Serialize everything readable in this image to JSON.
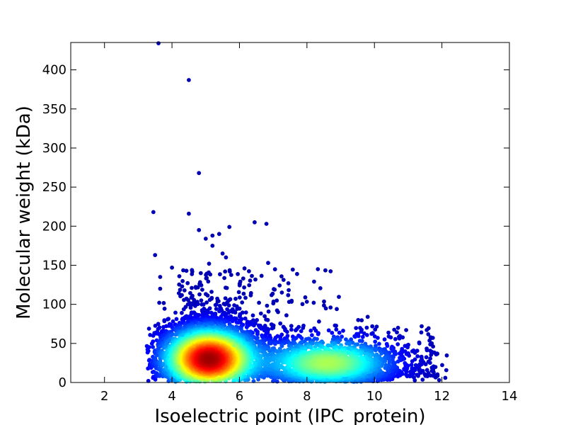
{
  "chart_data": {
    "type": "scatter",
    "title": "",
    "xlabel": "Isoelectric point (IPC_protein)",
    "ylabel": "Molecular weight (kDa)",
    "xlim": [
      1,
      14
    ],
    "ylim": [
      0,
      435
    ],
    "x_ticks": [
      2,
      4,
      6,
      8,
      10,
      12,
      14
    ],
    "y_ticks": [
      0,
      50,
      100,
      150,
      200,
      250,
      300,
      350,
      400
    ],
    "x_tick_labels": [
      "2",
      "4",
      "6",
      "8",
      "10",
      "12",
      "14"
    ],
    "y_tick_labels": [
      "0",
      "50",
      "100",
      "150",
      "200",
      "250",
      "300",
      "350",
      "400"
    ],
    "grid": false,
    "legend": "none",
    "colormap": "jet (point density)",
    "colormap_stops": [
      "#00007f",
      "#0000ff",
      "#007fff",
      "#00ffff",
      "#7fff7f",
      "#ffff00",
      "#ff7f00",
      "#ff0000",
      "#7f0000"
    ],
    "density_clusters": [
      {
        "center_x": 5.1,
        "center_y": 30,
        "description": "dense acidic cluster (peak density)"
      },
      {
        "center_x": 8.6,
        "center_y": 25,
        "description": "secondary basic cluster"
      }
    ],
    "outliers": [
      {
        "x": 3.6,
        "y": 434
      },
      {
        "x": 4.5,
        "y": 387
      },
      {
        "x": 4.8,
        "y": 268
      },
      {
        "x": 3.45,
        "y": 218
      },
      {
        "x": 4.5,
        "y": 216
      },
      {
        "x": 6.45,
        "y": 205
      },
      {
        "x": 6.8,
        "y": 203
      },
      {
        "x": 5.7,
        "y": 199
      },
      {
        "x": 4.8,
        "y": 195
      },
      {
        "x": 5.4,
        "y": 190
      },
      {
        "x": 5.2,
        "y": 188
      },
      {
        "x": 5.0,
        "y": 184
      },
      {
        "x": 5.2,
        "y": 175
      },
      {
        "x": 3.5,
        "y": 163
      },
      {
        "x": 5.5,
        "y": 165
      },
      {
        "x": 5.6,
        "y": 160
      },
      {
        "x": 6.85,
        "y": 153
      },
      {
        "x": 5.1,
        "y": 152
      },
      {
        "x": 4.0,
        "y": 147
      },
      {
        "x": 6.15,
        "y": 146
      },
      {
        "x": 3.65,
        "y": 135
      },
      {
        "x": 7.45,
        "y": 127
      },
      {
        "x": 4.3,
        "y": 123
      },
      {
        "x": 3.65,
        "y": 120
      },
      {
        "x": 8.2,
        "y": 102
      },
      {
        "x": 8.7,
        "y": 96
      },
      {
        "x": 9.8,
        "y": 84
      },
      {
        "x": 11.4,
        "y": 72
      },
      {
        "x": 10.7,
        "y": 70
      },
      {
        "x": 12.1,
        "y": 6
      },
      {
        "x": 11.7,
        "y": 50
      },
      {
        "x": 11.2,
        "y": 38
      },
      {
        "x": 3.3,
        "y": 2
      }
    ]
  }
}
